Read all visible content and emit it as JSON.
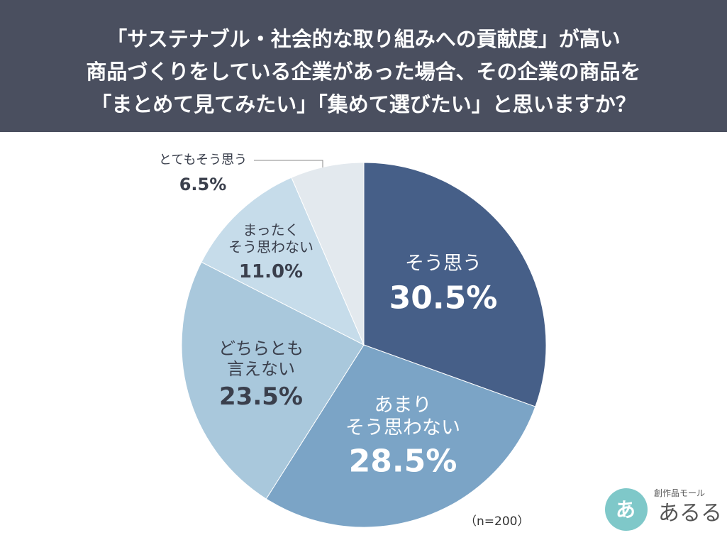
{
  "chart_data": {
    "type": "pie",
    "title": [
      "「サステナブル・社会的な取り組みへの貢献度」が高い",
      "商品づくりをしている企業があった場合、その企業の商品を",
      "「まとめて見てみたい」「集めて選びたい」と思いますか？"
    ],
    "categories": [
      "そう思う",
      "あまり\nそう思わない",
      "どちらとも\n言えない",
      "まったく\nそう思わない",
      "とてもそう思う"
    ],
    "values": [
      30.5,
      28.5,
      23.5,
      11.0,
      6.5
    ],
    "value_labels": [
      "30.5%",
      "28.5%",
      "23.5%",
      "11.0%",
      "6.5%"
    ],
    "colors": [
      "#465f88",
      "#7ba4c6",
      "#a9c8dc",
      "#c6dcea",
      "#e3e9ee"
    ],
    "note": "（n=200）"
  },
  "logo": {
    "tagline": "創作品モール",
    "name": "あるる",
    "mark": "あ"
  }
}
